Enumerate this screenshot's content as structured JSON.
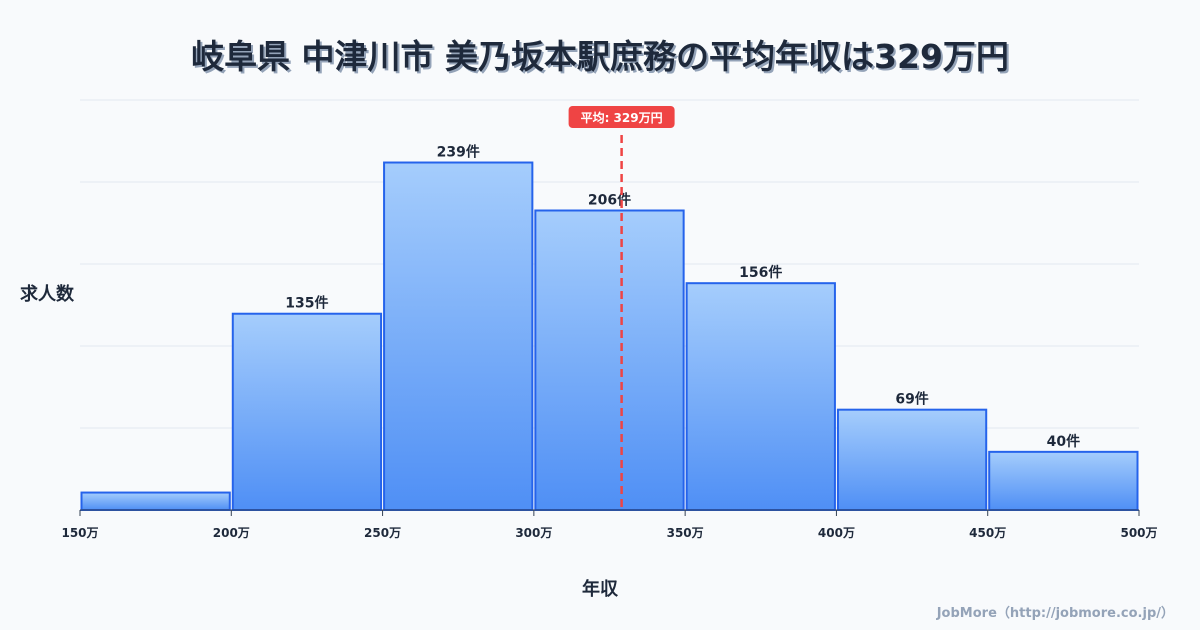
{
  "title": "岐阜県 中津川市 美乃坂本駅庶務の平均年収は329万円",
  "credit": "JobMore（http://jobmore.co.jp/）",
  "chart_data": {
    "type": "bar",
    "title": "岐阜県 中津川市 美乃坂本駅庶務の平均年収は329万円",
    "xlabel": "年収",
    "ylabel": "求人数",
    "bins": [
      [
        150,
        200
      ],
      [
        200,
        250
      ],
      [
        250,
        300
      ],
      [
        300,
        350
      ],
      [
        350,
        400
      ],
      [
        400,
        450
      ],
      [
        450,
        500
      ]
    ],
    "values": [
      12,
      135,
      239,
      206,
      156,
      69,
      40
    ],
    "labels": [
      "",
      "135件",
      "239件",
      "206件",
      "156件",
      "69件",
      "40件"
    ],
    "x_ticks": [
      "150万",
      "200万",
      "250万",
      "300万",
      "350万",
      "400万",
      "450万",
      "500万"
    ],
    "x_tick_values": [
      150,
      200,
      250,
      300,
      350,
      400,
      450,
      500
    ],
    "xlim": [
      150,
      500
    ],
    "ylim": [
      0,
      282
    ],
    "mean": {
      "value": 329,
      "label": "平均: 329万円",
      "color": "#ef4444"
    },
    "bar_color": "#2563eb"
  }
}
